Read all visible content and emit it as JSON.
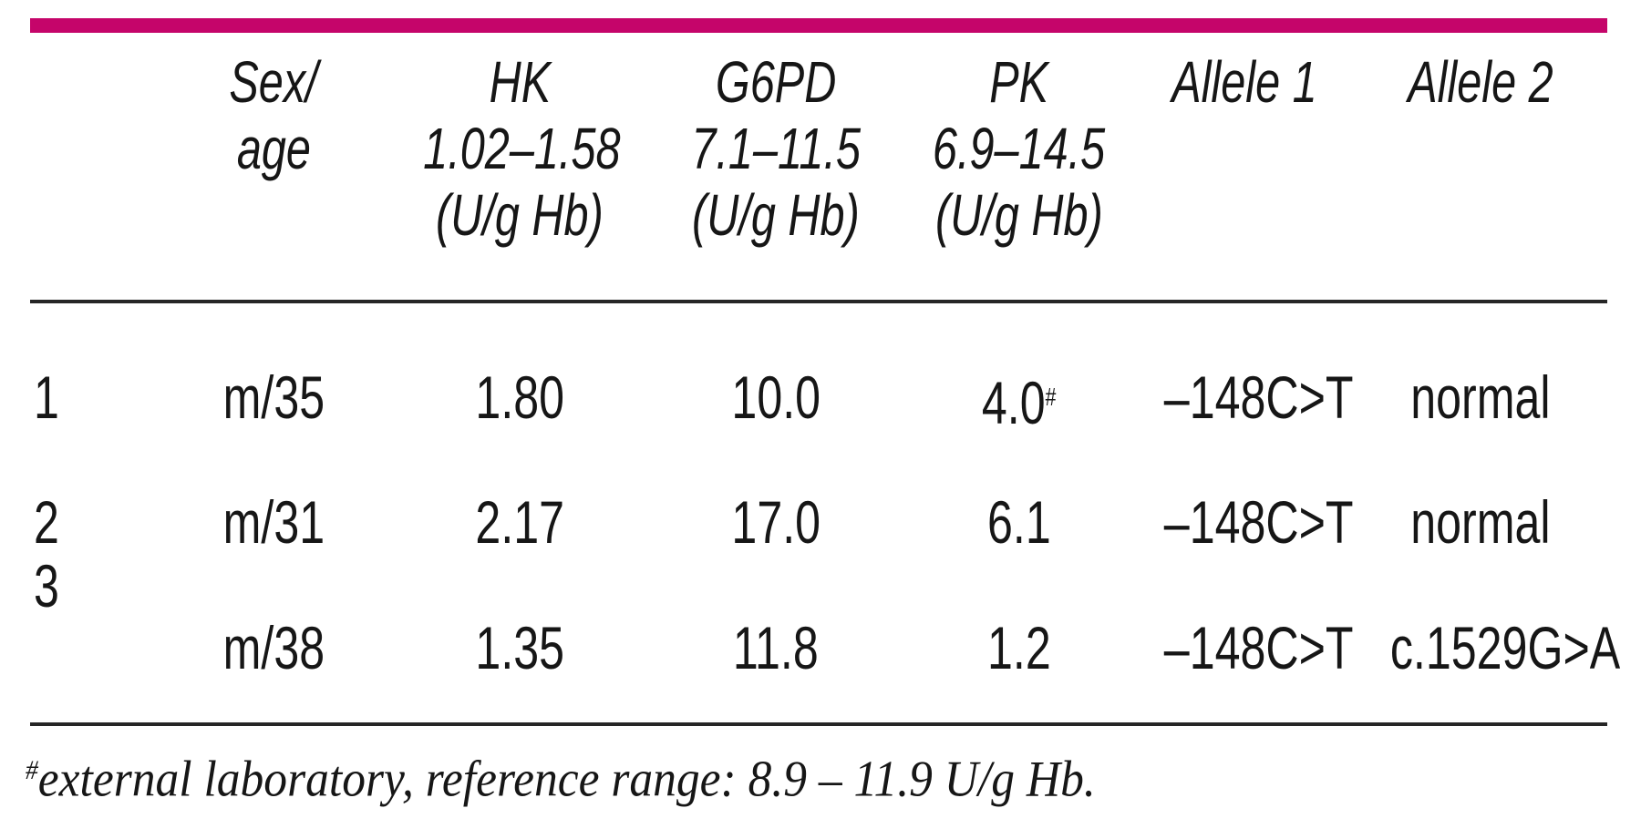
{
  "figure": {
    "accent_color": "#C5056A",
    "rule_color": "#262626",
    "text_color": "#161616",
    "header": {
      "columns": [
        {
          "id": "patient",
          "lines": []
        },
        {
          "id": "sex_age",
          "lines": [
            "Sex/",
            "age"
          ]
        },
        {
          "id": "hk",
          "lines": [
            "HK",
            "1.02–1.58",
            "(U/g Hb)"
          ]
        },
        {
          "id": "g6pd",
          "lines": [
            "G6PD",
            "7.1–11.5",
            "(U/g Hb)"
          ]
        },
        {
          "id": "pk",
          "lines": [
            "PK",
            "6.9–14.5",
            "(U/g Hb)"
          ]
        },
        {
          "id": "allele1",
          "lines": [
            "Allele 1"
          ]
        },
        {
          "id": "allele2",
          "lines": [
            "Allele 2"
          ]
        }
      ]
    },
    "rows": [
      {
        "patient": "1",
        "sex_age": "m/35",
        "hk": "1.80",
        "g6pd": "10.0",
        "pk": "4.0",
        "pk_note": "#",
        "allele1": "–148C>T",
        "allele2": "normal"
      },
      {
        "patient": "2",
        "sex_age": "m/31",
        "hk": "2.17",
        "g6pd": "17.0",
        "pk": "6.1",
        "pk_note": "",
        "allele1": "–148C>T",
        "allele2": "normal"
      },
      {
        "patient": "3",
        "sex_age": "m/38",
        "hk": "1.35",
        "g6pd": "11.8",
        "pk": "1.2",
        "pk_note": "",
        "allele1": "–148C>T",
        "allele2": "c.1529G>A"
      }
    ],
    "footnote": {
      "marker": "#",
      "text": "external laboratory, reference range: 8.9 – 11.9 U/g Hb."
    }
  }
}
